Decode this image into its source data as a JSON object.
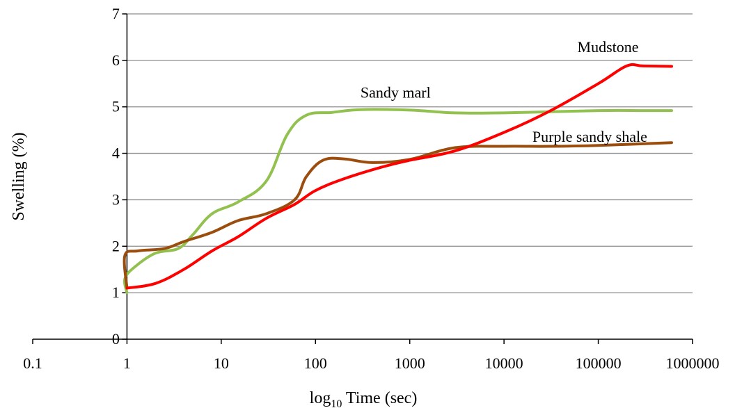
{
  "chart_data": {
    "type": "line",
    "title": "",
    "xlabel": "log",
    "xlabel_sub": "10",
    "xlabel_rest": " Time (sec)",
    "ylabel": "Swelling (%)",
    "x_scale": "log",
    "xlim": [
      0.1,
      1000000
    ],
    "ylim": [
      0,
      7
    ],
    "x_ticks": [
      0.1,
      1,
      10,
      100,
      1000,
      10000,
      100000,
      1000000
    ],
    "x_tick_labels": [
      "0.1",
      "1",
      "10",
      "100",
      "1000",
      "10000",
      "100000",
      "1000000"
    ],
    "y_ticks": [
      0,
      1,
      2,
      3,
      4,
      5,
      6,
      7
    ],
    "y_tick_labels": [
      "0",
      "1",
      "2",
      "3",
      "4",
      "5",
      "6",
      "7"
    ],
    "grid": "horizontal",
    "legend": "none",
    "series": [
      {
        "name": "Mudstone",
        "color": "#ff0000",
        "points": [
          [
            1,
            1.1
          ],
          [
            2,
            1.2
          ],
          [
            4,
            1.5
          ],
          [
            8,
            1.9
          ],
          [
            15,
            2.2
          ],
          [
            30,
            2.6
          ],
          [
            60,
            2.9
          ],
          [
            100,
            3.2
          ],
          [
            200,
            3.45
          ],
          [
            500,
            3.7
          ],
          [
            1000,
            3.85
          ],
          [
            3000,
            4.05
          ],
          [
            10000,
            4.45
          ],
          [
            30000,
            4.9
          ],
          [
            100000,
            5.5
          ],
          [
            200000,
            5.88
          ],
          [
            300000,
            5.88
          ],
          [
            600000,
            5.87
          ]
        ]
      },
      {
        "name": "Sandy marl",
        "color": "#92c150",
        "points": [
          [
            1,
            1.0
          ],
          [
            0.95,
            1.3
          ],
          [
            1.2,
            1.55
          ],
          [
            2,
            1.85
          ],
          [
            3.5,
            1.95
          ],
          [
            5,
            2.25
          ],
          [
            8,
            2.7
          ],
          [
            15,
            2.95
          ],
          [
            30,
            3.4
          ],
          [
            50,
            4.4
          ],
          [
            80,
            4.82
          ],
          [
            150,
            4.88
          ],
          [
            300,
            4.94
          ],
          [
            1000,
            4.93
          ],
          [
            3000,
            4.87
          ],
          [
            10000,
            4.87
          ],
          [
            100000,
            4.92
          ],
          [
            300000,
            4.92
          ],
          [
            600000,
            4.92
          ]
        ]
      },
      {
        "name": "Purple sandy shale",
        "color": "#9b4d0e",
        "points": [
          [
            1,
            1.1
          ],
          [
            0.95,
            1.8
          ],
          [
            1.3,
            1.9
          ],
          [
            2.5,
            1.95
          ],
          [
            4,
            2.1
          ],
          [
            8,
            2.3
          ],
          [
            15,
            2.55
          ],
          [
            30,
            2.7
          ],
          [
            60,
            3.0
          ],
          [
            80,
            3.5
          ],
          [
            120,
            3.85
          ],
          [
            200,
            3.88
          ],
          [
            400,
            3.8
          ],
          [
            1000,
            3.87
          ],
          [
            3000,
            4.12
          ],
          [
            10000,
            4.15
          ],
          [
            30000,
            4.15
          ],
          [
            100000,
            4.17
          ],
          [
            600000,
            4.23
          ]
        ]
      }
    ],
    "annotations": [
      {
        "text": "Mudstone",
        "series": "Mudstone"
      },
      {
        "text": "Sandy marl",
        "series": "Sandy marl"
      },
      {
        "text": "Purple sandy shale",
        "series": "Purple sandy shale"
      }
    ]
  }
}
